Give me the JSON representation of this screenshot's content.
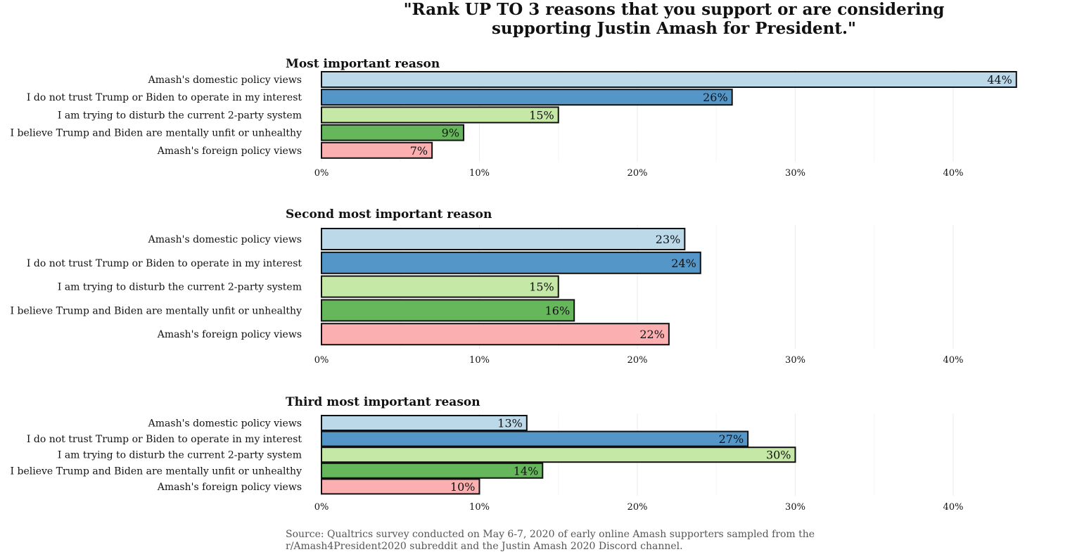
{
  "title_lines": [
    "\"Rank UP TO 3 reasons that you support or are considering",
    "supporting Justin Amash for President.\""
  ],
  "source_lines": [
    "Source: Qualtrics survey conducted on May 6-7, 2020 of early online Amash supporters sampled from the",
    "r/Amash4President2020 subreddit and the Justin Amash 2020 Discord channel."
  ],
  "colors": [
    "#bcd9ea",
    "#5596c8",
    "#c5e8a6",
    "#66b65c",
    "#fbafb0"
  ],
  "chart_data": [
    {
      "type": "bar",
      "orientation": "horizontal",
      "title": "Most important reason",
      "categories": [
        "Amash's domestic policy views",
        "I do not trust Trump or Biden to operate in my interest",
        "I am trying to disturb the current 2-party system",
        "I believe Trump and Biden are mentally unfit or unhealthy",
        "Amash's foreign policy views"
      ],
      "values": [
        44,
        26,
        15,
        9,
        7
      ],
      "value_labels": [
        "44%",
        "26%",
        "15%",
        "9%",
        "7%"
      ],
      "xticks": [
        "0%",
        "10%",
        "20%",
        "30%",
        "40%"
      ],
      "xlim": [
        0,
        44
      ],
      "grid": "vertical"
    },
    {
      "type": "bar",
      "orientation": "horizontal",
      "title": "Second most important reason",
      "categories": [
        "Amash's domestic policy views",
        "I do not trust Trump or Biden to operate in my interest",
        "I am trying to disturb the current 2-party system",
        "I believe Trump and Biden are mentally unfit or unhealthy",
        "Amash's foreign policy views"
      ],
      "values": [
        23,
        24,
        15,
        16,
        22
      ],
      "value_labels": [
        "23%",
        "24%",
        "15%",
        "16%",
        "22%"
      ],
      "xticks": [
        "0%",
        "10%",
        "20%",
        "30%",
        "40%"
      ],
      "xlim": [
        0,
        44
      ],
      "grid": "vertical"
    },
    {
      "type": "bar",
      "orientation": "horizontal",
      "title": "Third most important reason",
      "categories": [
        "Amash's domestic policy views",
        "I do not trust Trump or Biden to operate in my interest",
        "I am trying to disturb the current 2-party system",
        "I believe Trump and Biden are mentally unfit or unhealthy",
        "Amash's foreign policy views"
      ],
      "values": [
        13,
        27,
        30,
        14,
        10
      ],
      "value_labels": [
        "13%",
        "27%",
        "30%",
        "14%",
        "10%"
      ],
      "xticks": [
        "0%",
        "10%",
        "20%",
        "30%",
        "40%"
      ],
      "xlim": [
        0,
        44
      ],
      "grid": "vertical"
    }
  ]
}
